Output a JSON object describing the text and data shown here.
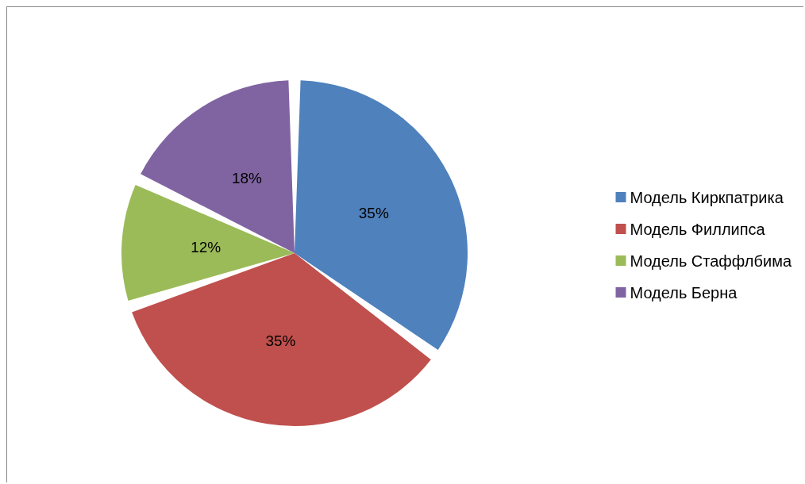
{
  "chart_data": {
    "type": "pie",
    "categories": [
      "Модель Киркпатрика",
      "Модель Филлипса",
      "Модель Стаффлбима",
      "Модель Берна"
    ],
    "values": [
      35,
      35,
      12,
      18
    ],
    "colors": [
      "#4f81bd",
      "#c0504d",
      "#9bbb59",
      "#8064a2"
    ],
    "value_labels": [
      "35%",
      "35%",
      "12%",
      "18%"
    ],
    "legend": "right"
  }
}
